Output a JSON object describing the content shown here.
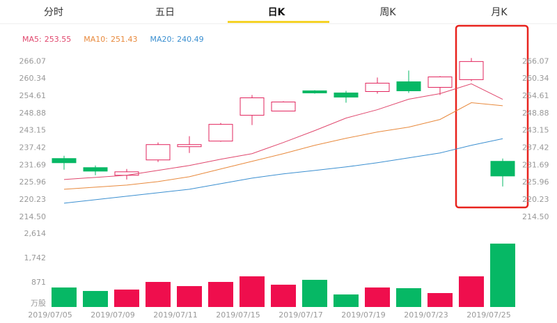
{
  "tabs": [
    "分时",
    "五日",
    "日K",
    "周K",
    "月K"
  ],
  "selected_tab": 2,
  "chart_data": [
    {
      "type": "candlestick",
      "open": [
        233.92,
        230.91,
        228.37,
        233.46,
        237.85,
        239.7,
        248.26,
        249.65,
        256.36,
        255.66,
        256.12,
        259.36,
        257.51,
        260.06,
        233.0
      ],
      "high": [
        234.85,
        231.61,
        230.45,
        239.24,
        241.32,
        245.72,
        254.97,
        252.89,
        256.59,
        256.36,
        260.75,
        263.06,
        261.21,
        267.23,
        233.92
      ],
      "low": [
        230.22,
        228.37,
        226.98,
        232.76,
        235.77,
        239.47,
        245.02,
        249.65,
        255.43,
        252.42,
        255.43,
        255.66,
        254.97,
        259.59,
        224.67
      ],
      "close": [
        232.53,
        229.75,
        229.52,
        238.54,
        238.54,
        245.25,
        254.04,
        252.66,
        255.66,
        254.27,
        258.9,
        256.36,
        260.98,
        266.07,
        228.14
      ],
      "up_color": "#e2245d",
      "down_color": "#06b865",
      "series": [
        {
          "name": "MA5:",
          "color": "#e0476d",
          "values": [
            226.98,
            227.67,
            228.37,
            229.99,
            231.61,
            233.69,
            235.54,
            239.24,
            243.17,
            247.33,
            250.11,
            253.58,
            255.43,
            258.67,
            253.55
          ]
        },
        {
          "name": "MA10:",
          "color": "#e8893c",
          "values": [
            223.74,
            224.44,
            225.13,
            226.28,
            227.9,
            230.45,
            232.99,
            235.54,
            238.31,
            240.63,
            242.71,
            244.33,
            246.87,
            252.42,
            251.43
          ]
        },
        {
          "name": "MA20:",
          "color": "#3b8fd0",
          "values": [
            219.12,
            220.28,
            221.43,
            222.59,
            223.74,
            225.59,
            227.44,
            228.83,
            229.98,
            231.14,
            232.53,
            234.15,
            235.77,
            238.31,
            240.49
          ]
        }
      ],
      "ylim": [
        213.1,
        268.0
      ],
      "yticks": [
        266.07,
        260.34,
        254.61,
        248.88,
        243.15,
        237.42,
        231.69,
        225.96,
        220.23,
        {
          "value": 214.5,
          "label": "214.50"
        }
      ]
    },
    {
      "type": "bar",
      "categories": [
        "2019/07/05",
        null,
        "2019/07/09",
        null,
        "2019/07/11",
        null,
        "2019/07/15",
        null,
        "2019/07/17",
        null,
        "2019/07/19",
        null,
        "2019/07/23",
        null,
        "2019/07/25"
      ],
      "values": [
        697,
        573,
        623,
        896,
        747,
        896,
        1096,
        797,
        971,
        448,
        697,
        672,
        498,
        1096,
        2266
      ],
      "colors": [
        "#06b865",
        "#06b865",
        "#ef0e4d",
        "#ef0e4d",
        "#ef0e4d",
        "#ef0e4d",
        "#ef0e4d",
        "#ef0e4d",
        "#06b865",
        "#06b865",
        "#ef0e4d",
        "#06b865",
        "#ef0e4d",
        "#ef0e4d",
        "#06b865"
      ],
      "y_unit": "万股",
      "ylim": [
        0,
        2750
      ],
      "yticks": [
        {
          "value": 2614,
          "label": "2,614"
        },
        {
          "value": 1742,
          "label": "1,742"
        },
        871
      ]
    }
  ]
}
